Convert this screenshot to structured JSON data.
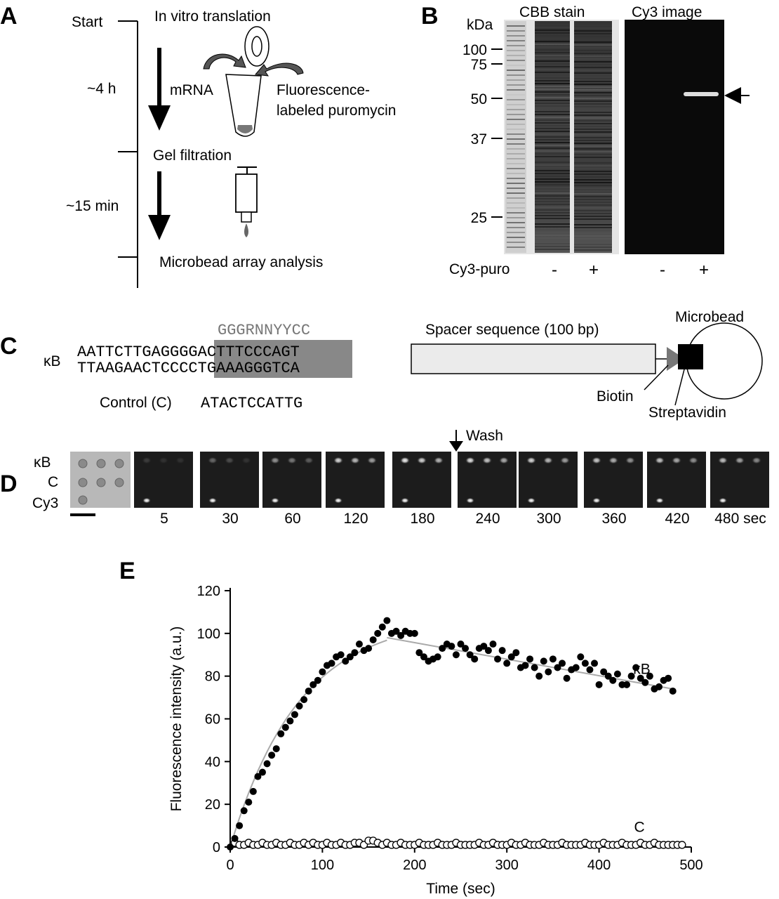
{
  "panel_labels": {
    "a": "A",
    "b": "B",
    "c": "C",
    "d": "D",
    "e": "E"
  },
  "panel_a": {
    "start": "Start",
    "step1": "In vitro translation",
    "time1": "~4 h",
    "mrna": "mRNA",
    "puro_line1": "Fluorescence-",
    "puro_line2": "labeled puromycin",
    "step2": "Gel filtration",
    "time2": "~15 min",
    "step3": "Microbead array analysis"
  },
  "panel_b": {
    "kda": "kDa",
    "cbb": "CBB stain",
    "cy3img": "Cy3 image",
    "markers": [
      "100",
      "75",
      "50",
      "37",
      "25"
    ],
    "row_label": "Cy3-puro",
    "lane_signs": [
      "-",
      "+",
      "-",
      "+"
    ]
  },
  "panel_c": {
    "consensus": "GGGRNNYYCC",
    "kb_label": "κB",
    "top_left": "AATTCTTGAG",
    "top_mid": "GGGACTTTCC",
    "top_right": "CAGT",
    "bot_left": "TTAAGAACTC",
    "bot_mid": "CCCTGAAAGG",
    "bot_right": "GTCA",
    "control_label": "Control (C)",
    "control_seq": "ATACTCCATTG",
    "spacer": "Spacer sequence (100 bp)",
    "microbead": "Microbead",
    "biotin": "Biotin",
    "streptavidin": "Streptavidin"
  },
  "panel_d": {
    "row_labels": [
      "κB",
      "C",
      "Cy3"
    ],
    "wash": "Wash",
    "times": [
      "5",
      "30",
      "60",
      "120",
      "180",
      "240",
      "300",
      "360",
      "420",
      "480 sec"
    ]
  },
  "chart_data": {
    "type": "scatter",
    "xlabel": "Time (sec)",
    "ylabel": "Fluorescence intensity (a.u.)",
    "xlim": [
      0,
      500
    ],
    "ylim": [
      0,
      120
    ],
    "xticks": [
      "0",
      "100",
      "200",
      "300",
      "400",
      "500"
    ],
    "yticks": [
      "0",
      "20",
      "40",
      "60",
      "80",
      "100",
      "120"
    ],
    "colors": {
      "kb": "#000000",
      "c": "#ffffff",
      "fit": "#aaaaaa"
    },
    "series": [
      {
        "name": "κB",
        "x": [
          5,
          10,
          15,
          20,
          25,
          30,
          35,
          40,
          45,
          50,
          55,
          60,
          65,
          70,
          75,
          80,
          85,
          90,
          95,
          100,
          105,
          110,
          115,
          120,
          125,
          130,
          135,
          140,
          145,
          150,
          155,
          160,
          165,
          170,
          175,
          180,
          185,
          190,
          195,
          200,
          205,
          210,
          215,
          220,
          225,
          230,
          235,
          240,
          245,
          250,
          255,
          260,
          265,
          270,
          275,
          280,
          285,
          290,
          295,
          300,
          305,
          310,
          315,
          320,
          325,
          330,
          335,
          340,
          345,
          350,
          355,
          360,
          365,
          370,
          375,
          380,
          385,
          390,
          395,
          400,
          405,
          410,
          415,
          420,
          425,
          430,
          435,
          440,
          445,
          450,
          455,
          460,
          465,
          470,
          475,
          480
        ],
        "y": [
          4,
          10,
          17,
          21,
          26,
          33,
          35,
          39,
          43,
          46,
          53,
          56,
          59,
          62,
          66,
          69,
          73,
          76,
          78,
          82,
          85,
          86,
          89,
          90,
          87,
          89,
          91,
          95,
          92,
          93,
          97,
          100,
          103,
          106,
          100,
          101,
          99,
          101,
          100,
          100,
          91,
          89,
          87,
          88,
          89,
          93,
          95,
          94,
          90,
          95,
          93,
          90,
          88,
          93,
          94,
          92,
          95,
          88,
          92,
          86,
          89,
          91,
          84,
          85,
          88,
          84,
          80,
          87,
          82,
          88,
          84,
          86,
          79,
          83,
          84,
          89,
          86,
          83,
          86,
          76,
          82,
          80,
          78,
          81,
          76,
          76,
          80,
          84,
          79,
          77,
          80,
          74,
          75,
          78,
          79,
          73
        ]
      },
      {
        "name": "C",
        "x": [
          5,
          10,
          15,
          20,
          25,
          30,
          35,
          40,
          45,
          50,
          55,
          60,
          65,
          70,
          75,
          80,
          85,
          90,
          95,
          100,
          105,
          110,
          115,
          120,
          125,
          130,
          135,
          140,
          145,
          150,
          155,
          160,
          165,
          170,
          175,
          180,
          185,
          190,
          195,
          200,
          205,
          210,
          215,
          220,
          225,
          230,
          235,
          240,
          245,
          250,
          255,
          260,
          265,
          270,
          275,
          280,
          285,
          290,
          295,
          300,
          305,
          310,
          315,
          320,
          325,
          330,
          335,
          340,
          345,
          350,
          355,
          360,
          365,
          370,
          375,
          380,
          385,
          390,
          395,
          400,
          405,
          410,
          415,
          420,
          425,
          430,
          435,
          440,
          445,
          450,
          455,
          460,
          465,
          470,
          475,
          480,
          485,
          490
        ],
        "y": [
          2,
          1,
          1,
          2,
          1,
          1,
          2,
          1,
          1,
          2,
          1,
          1,
          2,
          1,
          1,
          2,
          1,
          2,
          1,
          1,
          2,
          1,
          1,
          2,
          1,
          1,
          2,
          2,
          1,
          3,
          3,
          2,
          1,
          2,
          1,
          1,
          2,
          1,
          1,
          1,
          2,
          1,
          1,
          1,
          2,
          1,
          1,
          1,
          2,
          1,
          1,
          1,
          1,
          2,
          1,
          1,
          2,
          1,
          1,
          1,
          2,
          1,
          1,
          2,
          1,
          1,
          1,
          2,
          1,
          1,
          1,
          2,
          1,
          1,
          1,
          1,
          2,
          1,
          1,
          1,
          2,
          1,
          1,
          1,
          2,
          1,
          1,
          1,
          2,
          1,
          1,
          2,
          1,
          1,
          1,
          1,
          1,
          1
        ]
      }
    ],
    "annotations": [
      "κB",
      "C"
    ]
  }
}
